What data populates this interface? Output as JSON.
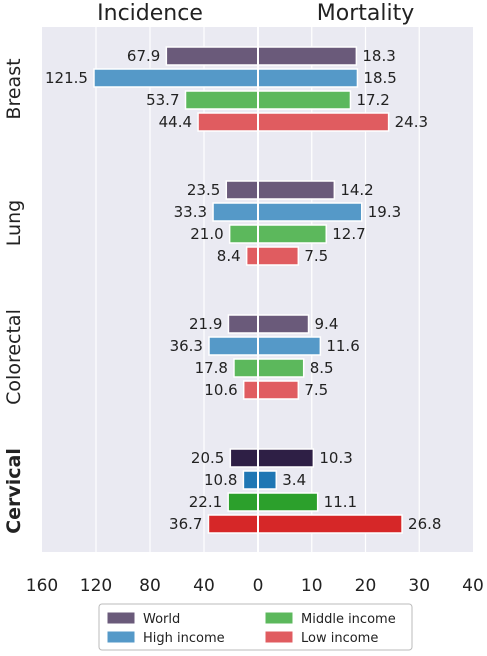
{
  "chart_data": {
    "type": "bar",
    "orientation": "horizontal",
    "layout": "back-to-back",
    "panels": [
      {
        "title": "Incidence",
        "side": "left",
        "xlim": [
          0,
          160
        ],
        "ticks": [
          160,
          120,
          80,
          40,
          0
        ]
      },
      {
        "title": "Mortality",
        "side": "right",
        "xlim": [
          0,
          40
        ],
        "ticks": [
          10,
          20,
          30,
          40
        ]
      }
    ],
    "categories": [
      {
        "name": "Breast",
        "emphasis": false
      },
      {
        "name": "Lung",
        "emphasis": false
      },
      {
        "name": "Colorectal",
        "emphasis": false
      },
      {
        "name": "Cervical",
        "emphasis": true
      }
    ],
    "series": [
      {
        "name": "World",
        "color": "#6a5a7a",
        "emph_color": "#2e1f45",
        "incidence": [
          67.9,
          23.5,
          21.9,
          20.5
        ],
        "mortality": [
          18.3,
          14.2,
          9.4,
          10.3
        ],
        "incidence_labels": [
          "67.9",
          "23.5",
          "21.9",
          "20.5"
        ],
        "mortality_labels": [
          "18.3",
          "14.2",
          "9.4",
          "10.3"
        ]
      },
      {
        "name": "High income",
        "color": "#5599c8",
        "emph_color": "#1f77b4",
        "incidence": [
          121.5,
          33.3,
          36.3,
          10.8
        ],
        "mortality": [
          18.5,
          19.3,
          11.6,
          3.4
        ],
        "incidence_labels": [
          "121.5",
          "33.3",
          "36.3",
          "10.8"
        ],
        "mortality_labels": [
          "18.5",
          "19.3",
          "11.6",
          "3.4"
        ]
      },
      {
        "name": "Middle income",
        "color": "#5cb85c",
        "emph_color": "#2ca02c",
        "incidence": [
          53.7,
          21.0,
          17.8,
          22.1
        ],
        "mortality": [
          17.2,
          12.7,
          8.5,
          11.1
        ],
        "incidence_labels": [
          "53.7",
          "21.0",
          "17.8",
          "22.1"
        ],
        "mortality_labels": [
          "17.2",
          "12.7",
          "8.5",
          "11.1"
        ]
      },
      {
        "name": "Low income",
        "color": "#e05c60",
        "emph_color": "#d62728",
        "incidence": [
          44.4,
          8.4,
          10.6,
          36.7
        ],
        "mortality": [
          24.3,
          7.5,
          7.5,
          26.8
        ],
        "incidence_labels": [
          "44.4",
          "8.4",
          "10.6",
          "36.7"
        ],
        "mortality_labels": [
          "24.3",
          "7.5",
          "7.5",
          "26.8"
        ]
      }
    ],
    "legend": {
      "placement": "bottom-center",
      "columns": 2
    },
    "grid": true,
    "colors": {
      "background": "#eaeaf2",
      "grid": "#ffffff"
    }
  }
}
